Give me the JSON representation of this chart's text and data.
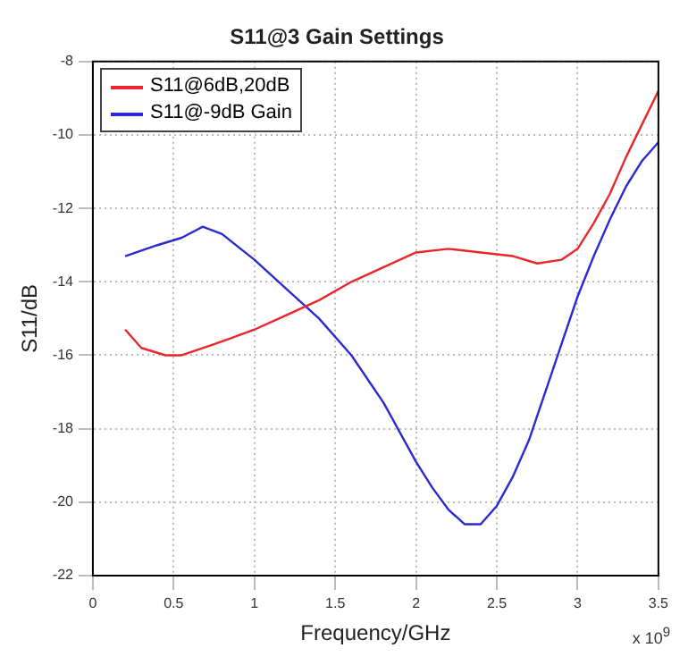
{
  "chart_data": {
    "type": "line",
    "title": "S11@3 Gain Settings",
    "xlabel": "Frequency/GHz",
    "ylabel": "S11/dB",
    "annotations": [
      "x 10$^{9}$"
    ],
    "xlim": [
      0,
      3.5
    ],
    "xticks": [
      0,
      0.5,
      1,
      1.5,
      2,
      2.5,
      3,
      3.5
    ],
    "ylim": [
      -22,
      -8
    ],
    "yticks": [
      -22,
      -20,
      -18,
      -16,
      -14,
      -12,
      -10,
      -8
    ],
    "grid": true,
    "legend": "top left",
    "line_style": "solid",
    "marker": "none",
    "series": [
      {
        "name": "S11@6dB,20dB",
        "color": "#e8262b",
        "x": [
          0.2,
          0.3,
          0.45,
          0.55,
          0.75,
          1.0,
          1.2,
          1.4,
          1.6,
          1.8,
          2.0,
          2.2,
          2.4,
          2.6,
          2.75,
          2.9,
          3.0,
          3.1,
          3.2,
          3.3,
          3.4,
          3.5
        ],
        "values": [
          -15.3,
          -15.8,
          -16.0,
          -16.0,
          -15.7,
          -15.3,
          -14.9,
          -14.5,
          -14.0,
          -13.6,
          -13.2,
          -13.1,
          -13.2,
          -13.3,
          -13.5,
          -13.4,
          -13.1,
          -12.4,
          -11.6,
          -10.6,
          -9.7,
          -8.8
        ]
      },
      {
        "name": "S11@-9dB Gain",
        "color": "#2a2ad0",
        "x": [
          0.2,
          0.4,
          0.55,
          0.68,
          0.8,
          1.0,
          1.2,
          1.4,
          1.6,
          1.8,
          2.0,
          2.1,
          2.2,
          2.3,
          2.4,
          2.5,
          2.6,
          2.7,
          2.8,
          2.9,
          3.0,
          3.1,
          3.2,
          3.3,
          3.4,
          3.5
        ],
        "values": [
          -13.3,
          -13.0,
          -12.8,
          -12.5,
          -12.7,
          -13.4,
          -14.2,
          -15.0,
          -16.0,
          -17.3,
          -18.9,
          -19.6,
          -20.2,
          -20.6,
          -20.6,
          -20.1,
          -19.3,
          -18.3,
          -17.0,
          -15.7,
          -14.4,
          -13.3,
          -12.3,
          -11.4,
          -10.7,
          -10.2
        ]
      }
    ]
  }
}
